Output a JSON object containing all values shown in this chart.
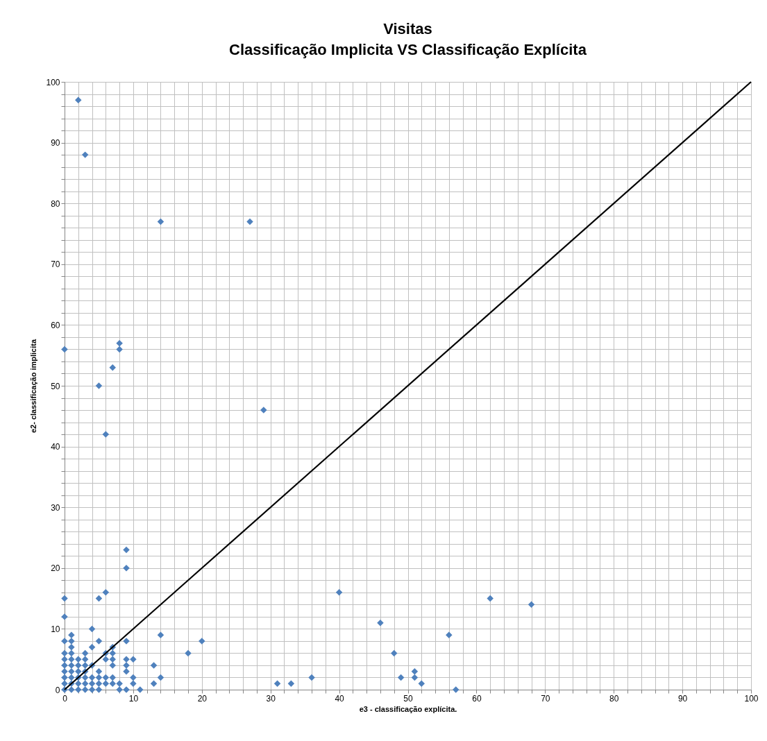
{
  "chart_data": {
    "type": "scatter",
    "title": "Visitas",
    "subtitle": "Classificação Implicita VS Classificação Explícita",
    "xlabel": "e3 - classificação  explícita.",
    "ylabel": "e2- classificação  implicita",
    "xlim": [
      0,
      100
    ],
    "ylim": [
      0,
      100
    ],
    "xticks": [
      0,
      {
        "value": 2,
        "label": null
      },
      {
        "value": 4,
        "label": null
      },
      {
        "value": 6,
        "label": null
      },
      {
        "value": 8,
        "label": null
      },
      10,
      {
        "value": 12,
        "label": null
      },
      {
        "value": 14,
        "label": null
      },
      {
        "value": 16,
        "label": null
      },
      {
        "value": 18,
        "label": null
      },
      20,
      {
        "value": 22,
        "label": null
      },
      {
        "value": 24,
        "label": null
      },
      {
        "value": 26,
        "label": null
      },
      {
        "value": 28,
        "label": null
      },
      30,
      {
        "value": 32,
        "label": null
      },
      {
        "value": 34,
        "label": null
      },
      {
        "value": 36,
        "label": null
      },
      {
        "value": 38,
        "label": null
      },
      40,
      {
        "value": 42,
        "label": null
      },
      {
        "value": 44,
        "label": null
      },
      {
        "value": 46,
        "label": null
      },
      {
        "value": 48,
        "label": null
      },
      50,
      {
        "value": 52,
        "label": null
      },
      {
        "value": 54,
        "label": null
      },
      {
        "value": 56,
        "label": null
      },
      {
        "value": 58,
        "label": null
      },
      60,
      {
        "value": 62,
        "label": null
      },
      {
        "value": 64,
        "label": null
      },
      {
        "value": 66,
        "label": null
      },
      {
        "value": 68,
        "label": null
      },
      70,
      {
        "value": 72,
        "label": null
      },
      {
        "value": 74,
        "label": null
      },
      {
        "value": 76,
        "label": null
      },
      {
        "value": 78,
        "label": null
      },
      80,
      {
        "value": 82,
        "label": null
      },
      {
        "value": 84,
        "label": null
      },
      {
        "value": 86,
        "label": null
      },
      {
        "value": 88,
        "label": null
      },
      90,
      {
        "value": 92,
        "label": null
      },
      {
        "value": 94,
        "label": null
      },
      {
        "value": 96,
        "label": null
      },
      {
        "value": 98,
        "label": null
      },
      100
    ],
    "yticks": [
      0,
      {
        "value": 2,
        "label": null
      },
      {
        "value": 4,
        "label": null
      },
      {
        "value": 6,
        "label": null
      },
      {
        "value": 8,
        "label": null
      },
      10,
      {
        "value": 12,
        "label": null
      },
      {
        "value": 14,
        "label": null
      },
      {
        "value": 16,
        "label": null
      },
      {
        "value": 18,
        "label": null
      },
      20,
      {
        "value": 22,
        "label": null
      },
      {
        "value": 24,
        "label": null
      },
      {
        "value": 26,
        "label": null
      },
      {
        "value": 28,
        "label": null
      },
      30,
      {
        "value": 32,
        "label": null
      },
      {
        "value": 34,
        "label": null
      },
      {
        "value": 36,
        "label": null
      },
      {
        "value": 38,
        "label": null
      },
      40,
      {
        "value": 42,
        "label": null
      },
      {
        "value": 44,
        "label": null
      },
      {
        "value": 46,
        "label": null
      },
      {
        "value": 48,
        "label": null
      },
      50,
      {
        "value": 52,
        "label": null
      },
      {
        "value": 54,
        "label": null
      },
      {
        "value": 56,
        "label": null
      },
      {
        "value": 58,
        "label": null
      },
      60,
      {
        "value": 62,
        "label": null
      },
      {
        "value": 64,
        "label": null
      },
      {
        "value": 66,
        "label": null
      },
      {
        "value": 68,
        "label": null
      },
      70,
      {
        "value": 72,
        "label": null
      },
      {
        "value": 74,
        "label": null
      },
      {
        "value": 76,
        "label": null
      },
      {
        "value": 78,
        "label": null
      },
      80,
      {
        "value": 82,
        "label": null
      },
      {
        "value": 84,
        "label": null
      },
      {
        "value": 86,
        "label": null
      },
      {
        "value": 88,
        "label": null
      },
      90,
      {
        "value": 92,
        "label": null
      },
      {
        "value": 94,
        "label": null
      },
      {
        "value": 96,
        "label": null
      },
      {
        "value": 98,
        "label": null
      },
      100
    ],
    "grid": true,
    "series": [
      {
        "color": "#4f81bd",
        "marker": "diamond",
        "x": [
          2,
          3,
          14,
          27,
          0,
          8,
          8,
          7,
          5,
          6,
          29,
          9,
          9,
          6,
          0,
          5,
          0,
          4,
          1,
          0,
          5,
          9,
          14,
          20,
          18,
          40,
          46,
          48,
          56,
          62,
          68,
          49,
          51,
          51,
          52,
          57,
          36,
          33,
          31,
          13,
          13,
          14,
          11,
          10,
          10,
          10,
          9,
          9,
          9,
          9,
          8,
          8,
          7,
          7,
          7,
          7,
          7,
          7,
          6,
          6,
          6,
          6,
          5,
          5,
          5,
          5,
          4,
          4,
          4,
          4,
          4,
          3,
          3,
          3,
          3,
          3,
          3,
          3,
          2,
          2,
          2,
          2,
          2,
          2,
          1,
          1,
          1,
          1,
          1,
          1,
          1,
          1,
          1,
          0,
          0,
          0,
          0,
          0,
          0,
          0
        ],
        "values": [
          97,
          88,
          77,
          77,
          56,
          57,
          56,
          53,
          50,
          42,
          46,
          23,
          20,
          16,
          15,
          15,
          12,
          10,
          9,
          8,
          8,
          8,
          9,
          8,
          6,
          16,
          11,
          6,
          9,
          15,
          14,
          2,
          3,
          2,
          1,
          0,
          2,
          1,
          1,
          4,
          1,
          2,
          0,
          5,
          2,
          1,
          5,
          4,
          3,
          0,
          1,
          0,
          7,
          6,
          5,
          4,
          2,
          1,
          6,
          5,
          2,
          1,
          3,
          2,
          1,
          0,
          7,
          4,
          2,
          1,
          0,
          6,
          5,
          4,
          3,
          2,
          1,
          0,
          5,
          4,
          3,
          2,
          1,
          0,
          8,
          7,
          6,
          5,
          4,
          3,
          2,
          1,
          0,
          6,
          5,
          4,
          3,
          2,
          1,
          0
        ]
      },
      {
        "type": "line",
        "color": "#000000",
        "line_style": "solid",
        "x": [
          0,
          100
        ],
        "values": [
          0,
          100
        ]
      }
    ]
  }
}
